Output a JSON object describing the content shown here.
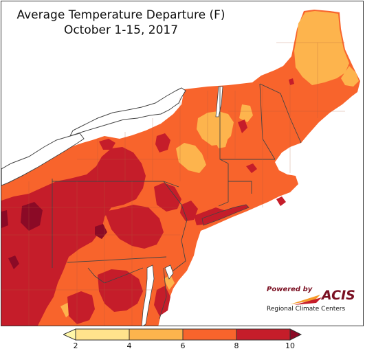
{
  "title": {
    "line1": "Average Temperature Departure (F)",
    "line2": "October 1-15, 2017"
  },
  "legend": {
    "ticks": [
      "2",
      "4",
      "6",
      "8",
      "10"
    ],
    "bins": [
      {
        "range": "<2",
        "color": "#fff7a8"
      },
      {
        "range": "2-4",
        "color": "#ffe38c"
      },
      {
        "range": "4-6",
        "color": "#fdb44d"
      },
      {
        "range": "6-8",
        "color": "#f8642c"
      },
      {
        "range": "8-10",
        "color": "#c51d2a"
      },
      {
        "range": ">10",
        "color": "#8b0a26"
      }
    ]
  },
  "logo": {
    "powered_by": "Powered by",
    "name": "ACIS",
    "subtitle": "Regional Climate Centers"
  },
  "colors": {
    "background": "#ffffff",
    "lake": "#ffffff",
    "border_line": "#444444",
    "county_line": "#b45a3a"
  }
}
